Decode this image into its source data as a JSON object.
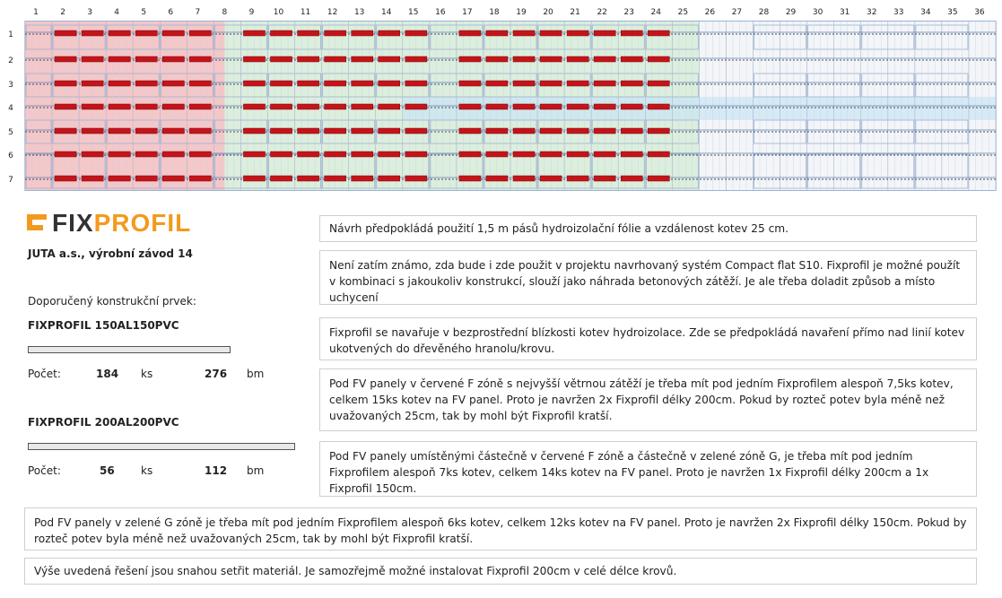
{
  "plan": {
    "columns": [
      "1",
      "2",
      "3",
      "4",
      "5",
      "6",
      "7",
      "8",
      "9",
      "10",
      "11",
      "12",
      "13",
      "14",
      "15",
      "16",
      "17",
      "18",
      "19",
      "20",
      "21",
      "22",
      "23",
      "24",
      "25",
      "26",
      "27",
      "28",
      "29",
      "30",
      "31",
      "32",
      "33",
      "34",
      "35",
      "36"
    ],
    "rows": [
      "1",
      "2",
      "3",
      "4",
      "5",
      "6",
      "7"
    ]
  },
  "logo": {
    "part1": "FIX",
    "part2": "PROFIL"
  },
  "company": "JUTA a.s., výrobní závod 14",
  "recommended_label": "Doporučený konstrukční prvek:",
  "products": [
    {
      "name": "FIXPROFIL 150AL150PVC",
      "count_label": "Počet:",
      "count": "184",
      "unit1": "ks",
      "length": "276",
      "unit2": "bm"
    },
    {
      "name": "FIXPROFIL 200AL200PVC",
      "count_label": "Počet:",
      "count": "56",
      "unit1": "ks",
      "length": "112",
      "unit2": "bm"
    }
  ],
  "notes": [
    "Návrh předpokládá použití 1,5 m pásů hydroizolační fólie a vzdálenost kotev 25 cm.",
    "Není zatím známo, zda bude i zde použit v projektu navrhovaný systém Compact flat S10. Fixprofil je možné použít v kombinaci s jakoukoliv konstrukcí, slouží jako náhrada betonových zátěží. Je ale třeba doladit způsob a místo uchycení",
    "Fixprofil se navařuje v bezprostřední blízkosti kotev hydroizolace. Zde se předpokládá navaření přímo nad linií kotev ukotvených do dřevěného hranolu/krovu.",
    "Pod FV panely v červené F zóně s nejvyšší větrnou zátěží je třeba mít pod jedním Fixprofilem alespoň 7,5ks kotev, celkem 15ks kotev na FV panel. Proto je navržen 2x Fixprofil délky 200cm. Pokud by rozteč potev byla méně než uvažovaných 25cm, tak by mohl být Fixprofil kratší.",
    "Pod FV panely umístěnými částečně v červené F zóně a částečně v zelené zóně G, je třeba mít pod jedním Fixprofilem alespoň 7ks kotev, celkem 14ks kotev na FV panel. Proto je navržen 1x Fixprofil délky 200cm a 1x Fixprofil 150cm.",
    "Pod FV panely v zelené G zóně je třeba mít pod jedním Fixprofilem alespoň 6ks kotev, celkem 12ks kotev na FV panel. Proto je navržen 2x Fixprofil délky 150cm. Pokud by rozteč potev byla méně než uvažovaných 25cm, tak by mohl být Fixprofil kratší.",
    "Výše uvedená řešení jsou snahou setřit materiál. Je samozřejmě možné instalovat Fixprofil 200cm v celé délce krovů."
  ],
  "colors": {
    "zone_f": "#f4c7c9",
    "zone_g": "#dceedd",
    "panel_stripe": "#c9e6f4",
    "profile_red": "#c4141a",
    "grid": "#5b7fb8",
    "logo_accent": "#f39a1d"
  }
}
